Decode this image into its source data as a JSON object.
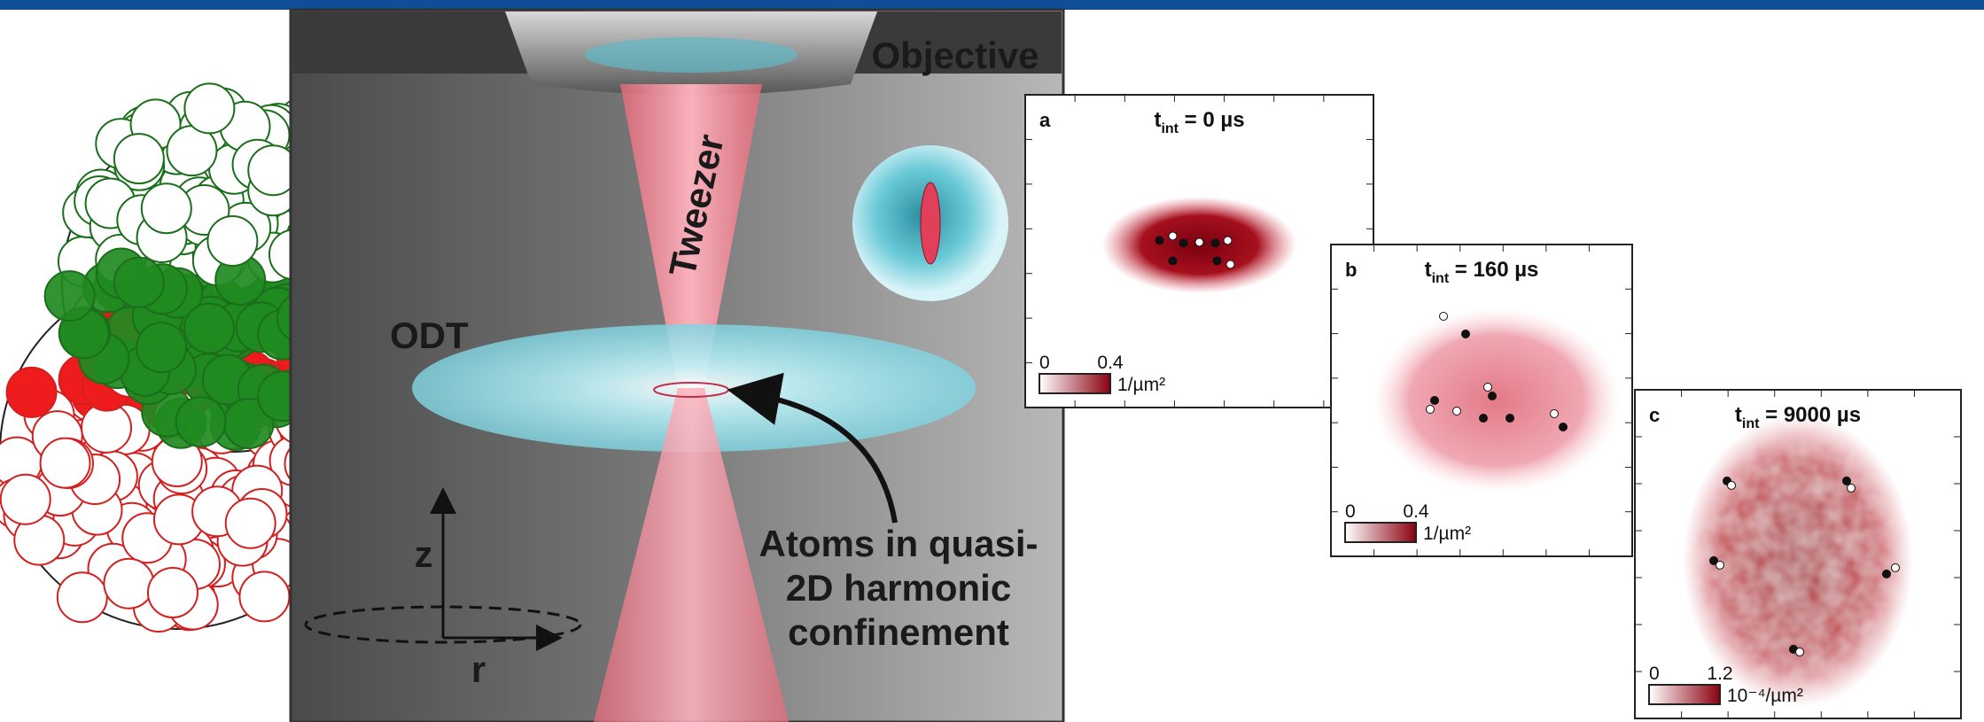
{
  "scene": {
    "objective": "Objective",
    "tweezer": "Tweezer",
    "odt": "ODT",
    "atoms_label": [
      "Atoms in quasi-",
      "2D harmonic",
      "confinement"
    ],
    "axis_z": "z",
    "axis_r": "r"
  },
  "panels": [
    {
      "letter": "a",
      "title_var": "t",
      "title_sub": "int",
      "title_value": " = 0 µs",
      "cbar_min": "0",
      "cbar_max": "0.4",
      "cbar_unit": "1/µm²"
    },
    {
      "letter": "b",
      "title_var": "t",
      "title_sub": "int",
      "title_value": " = 160 µs",
      "cbar_min": "0",
      "cbar_max": "0.4",
      "cbar_unit": "1/µm²"
    },
    {
      "letter": "c",
      "title_var": "t",
      "title_sub": "int",
      "title_value": " = 9000 µs",
      "cbar_min": "0",
      "cbar_max": "1.2",
      "cbar_unit": "10⁻⁴/µm²"
    }
  ]
}
